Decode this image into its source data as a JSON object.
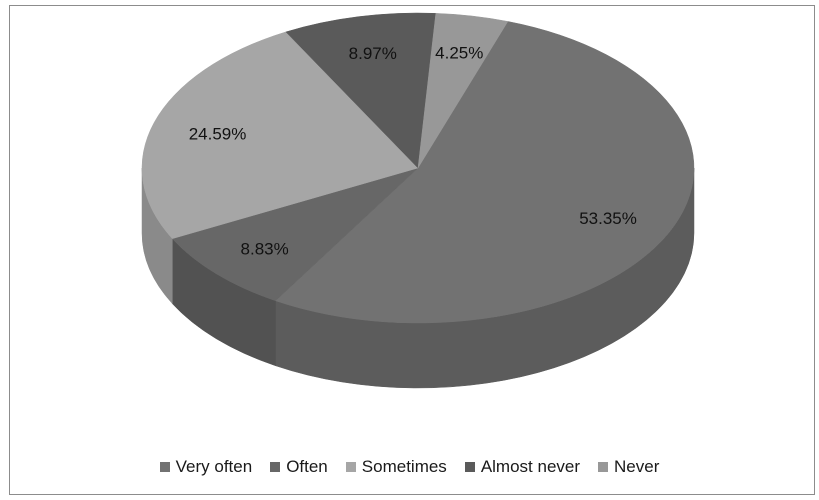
{
  "chart_data": {
    "type": "pie",
    "style": "3d",
    "legend_position": "bottom",
    "slices": [
      {
        "name": "Very often",
        "value": 53.35,
        "label": "53.35%",
        "color": "#727272",
        "side_color": "#5c5c5c"
      },
      {
        "name": "Often",
        "value": 8.83,
        "label": "8.83%",
        "color": "#676767",
        "side_color": "#525252"
      },
      {
        "name": "Sometimes",
        "value": 24.59,
        "label": "24.59%",
        "color": "#a6a6a6",
        "side_color": "#8a8a8a"
      },
      {
        "name": "Almost never",
        "value": 8.97,
        "label": "8.97%",
        "color": "#5a5a5a",
        "side_color": "#2e2e2e"
      },
      {
        "name": "Never",
        "value": 4.25,
        "label": "4.25%",
        "color": "#989898",
        "side_color": "#6a6a6a"
      }
    ]
  }
}
